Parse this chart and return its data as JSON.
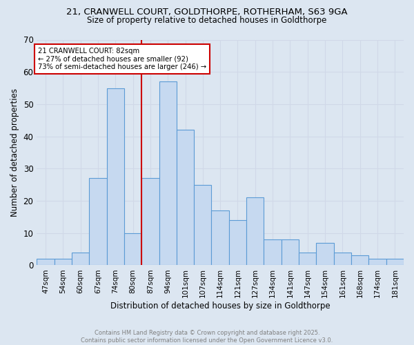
{
  "title1": "21, CRANWELL COURT, GOLDTHORPE, ROTHERHAM, S63 9GA",
  "title2": "Size of property relative to detached houses in Goldthorpe",
  "xlabel": "Distribution of detached houses by size in Goldthorpe",
  "ylabel": "Number of detached properties",
  "bar_labels": [
    "47sqm",
    "54sqm",
    "60sqm",
    "67sqm",
    "74sqm",
    "80sqm",
    "87sqm",
    "94sqm",
    "101sqm",
    "107sqm",
    "114sqm",
    "121sqm",
    "127sqm",
    "134sqm",
    "141sqm",
    "147sqm",
    "154sqm",
    "161sqm",
    "168sqm",
    "174sqm",
    "181sqm"
  ],
  "bar_values": [
    2,
    2,
    4,
    27,
    55,
    10,
    27,
    57,
    42,
    25,
    17,
    14,
    21,
    8,
    8,
    4,
    7,
    4,
    3,
    2,
    2
  ],
  "bar_color": "#c6d9f0",
  "bar_edge_color": "#5b9bd5",
  "annotation_text": "21 CRANWELL COURT: 82sqm\n← 27% of detached houses are smaller (92)\n73% of semi-detached houses are larger (246) →",
  "annotation_box_color": "#ffffff",
  "annotation_box_edge": "#cc0000",
  "vline_color": "#cc0000",
  "ylim": [
    0,
    70
  ],
  "yticks": [
    0,
    10,
    20,
    30,
    40,
    50,
    60,
    70
  ],
  "grid_color": "#d0d8e8",
  "bg_color": "#dce6f1",
  "footnote": "Contains HM Land Registry data © Crown copyright and database right 2025.\nContains public sector information licensed under the Open Government Licence v3.0.",
  "footnote_color": "#808080"
}
